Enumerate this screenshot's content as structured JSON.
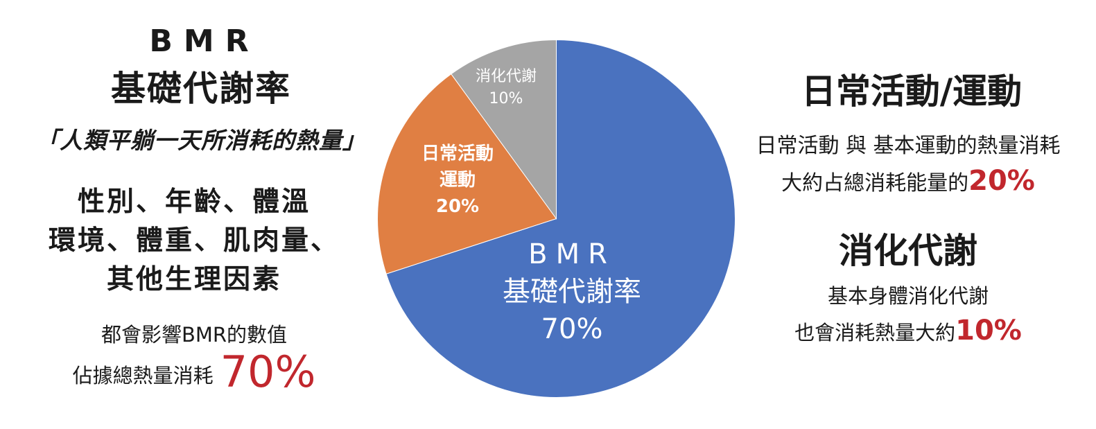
{
  "left": {
    "title_en": "BMR",
    "title_zh": "基礎代謝率",
    "quote": "「人類平躺一天所消耗的熱量」",
    "factors": [
      "性別、年齡、體溫",
      "環境、體重、肌肉量、",
      "其他生理因素"
    ],
    "affect_text": "都會影響BMR的數值",
    "occupy_text": "佔據總熱量消耗",
    "occupy_pct": "70%"
  },
  "right": {
    "daily_title": "日常活動/運動",
    "daily_desc_line1": "日常活動 與 基本運動的熱量消耗",
    "daily_desc_line2": "大約占總消耗能量的",
    "daily_pct": "20%",
    "digest_title": "消化代謝",
    "digest_desc_line1": "基本身體消化代謝",
    "digest_desc_line2": "也會消耗熱量大約",
    "digest_pct": "10%"
  },
  "chart_data": {
    "type": "pie",
    "slices": [
      {
        "label_lines": [
          "BMR",
          "基礎代謝率"
        ],
        "value": 70,
        "value_label": "70%",
        "color": "#4a72bf"
      },
      {
        "label_lines": [
          "日常活動",
          "運動"
        ],
        "value": 20,
        "value_label": "20%",
        "color": "#e07f43"
      },
      {
        "label_lines": [
          "消化代謝"
        ],
        "value": 10,
        "value_label": "10%",
        "color": "#a5a5a5"
      }
    ]
  }
}
